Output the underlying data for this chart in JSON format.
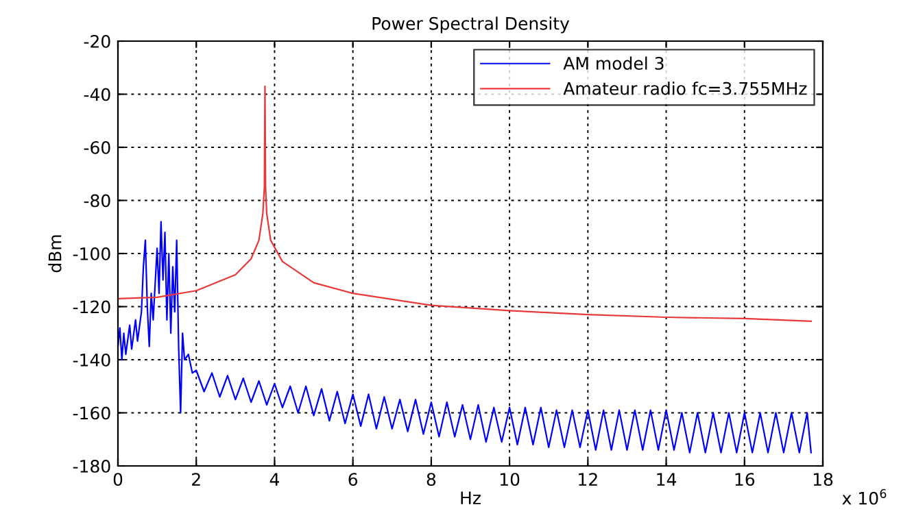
{
  "chart_data": {
    "type": "line",
    "title": "Power Spectral Density",
    "xlabel": "Hz",
    "ylabel": "dBm",
    "annotations": [
      "x 10$^{6}$"
    ],
    "xlim": [
      0,
      18
    ],
    "xticks": [
      0,
      2,
      4,
      6,
      8,
      10,
      12,
      14,
      16,
      18
    ],
    "ylim": [
      -180,
      -20
    ],
    "yticks": [
      -180,
      -160,
      -140,
      -120,
      -100,
      -80,
      -60,
      -40,
      -20
    ],
    "grid": true,
    "legend": "top right",
    "line_style": "solid",
    "series": [
      {
        "name": "AM model 3",
        "color": "#0000ff",
        "x": [
          0,
          0.05,
          0.1,
          0.15,
          0.2,
          0.3,
          0.35,
          0.45,
          0.5,
          0.6,
          0.65,
          0.7,
          0.75,
          0.8,
          0.85,
          0.9,
          1.0,
          1.05,
          1.1,
          1.15,
          1.2,
          1.25,
          1.3,
          1.35,
          1.4,
          1.45,
          1.5,
          1.55,
          1.6,
          1.65,
          1.7,
          1.8,
          1.9,
          2.0,
          2.2,
          2.4,
          2.6,
          2.8,
          3.0,
          3.2,
          3.4,
          3.6,
          3.8,
          4.0,
          4.2,
          4.4,
          4.6,
          4.8,
          5.0,
          5.2,
          5.4,
          5.6,
          5.8,
          6.0,
          6.2,
          6.4,
          6.6,
          6.8,
          7.0,
          7.2,
          7.4,
          7.6,
          7.8,
          8.0,
          8.2,
          8.4,
          8.6,
          8.8,
          9.0,
          9.2,
          9.4,
          9.6,
          9.8,
          10.0,
          10.2,
          10.4,
          10.6,
          10.8,
          11.0,
          11.2,
          11.4,
          11.6,
          11.8,
          12.0,
          12.2,
          12.4,
          12.6,
          12.8,
          13.0,
          13.2,
          13.4,
          13.6,
          13.8,
          14.0,
          14.2,
          14.4,
          14.6,
          14.8,
          15.0,
          15.2,
          15.4,
          15.6,
          15.8,
          16.0,
          16.2,
          16.4,
          16.6,
          16.8,
          17.0,
          17.2,
          17.4,
          17.6,
          17.7
        ],
        "values": [
          -135,
          -128,
          -140,
          -130,
          -138,
          -127,
          -136,
          -125,
          -133,
          -122,
          -105,
          -95,
          -120,
          -135,
          -115,
          -125,
          -98,
          -115,
          -88,
          -110,
          -92,
          -125,
          -100,
          -130,
          -105,
          -122,
          -95,
          -135,
          -160,
          -130,
          -140,
          -138,
          -145,
          -144,
          -152,
          -145,
          -154,
          -146,
          -155,
          -147,
          -156,
          -148,
          -157,
          -149,
          -158,
          -150,
          -160,
          -150,
          -161,
          -151,
          -163,
          -152,
          -164,
          -153,
          -165,
          -153,
          -166,
          -154,
          -166,
          -155,
          -167,
          -155,
          -168,
          -156,
          -169,
          -156,
          -169,
          -157,
          -170,
          -157,
          -171,
          -158,
          -171,
          -158,
          -172,
          -158,
          -172,
          -158,
          -173,
          -159,
          -173,
          -159,
          -173,
          -159,
          -174,
          -159,
          -174,
          -159,
          -174,
          -159,
          -174,
          -159,
          -174,
          -159,
          -174,
          -160,
          -175,
          -160,
          -175,
          -160,
          -175,
          -160,
          -175,
          -160,
          -175,
          -160,
          -175,
          -160,
          -175,
          -160,
          -175,
          -160,
          -175
        ]
      },
      {
        "name": "Amateur radio fc=3.755MHz",
        "color": "#e8393a",
        "x": [
          0,
          1,
          2,
          3,
          3.4,
          3.6,
          3.7,
          3.74,
          3.755,
          3.77,
          3.8,
          3.9,
          4.2,
          5,
          6,
          8,
          10,
          12,
          14,
          16,
          17.7
        ],
        "values": [
          -117,
          -116.5,
          -114,
          -108,
          -102,
          -95,
          -85,
          -75,
          -37,
          -75,
          -85,
          -95,
          -103,
          -111,
          -115,
          -119.5,
          -121.5,
          -123,
          -124,
          -124.5,
          -125.5
        ]
      }
    ]
  }
}
